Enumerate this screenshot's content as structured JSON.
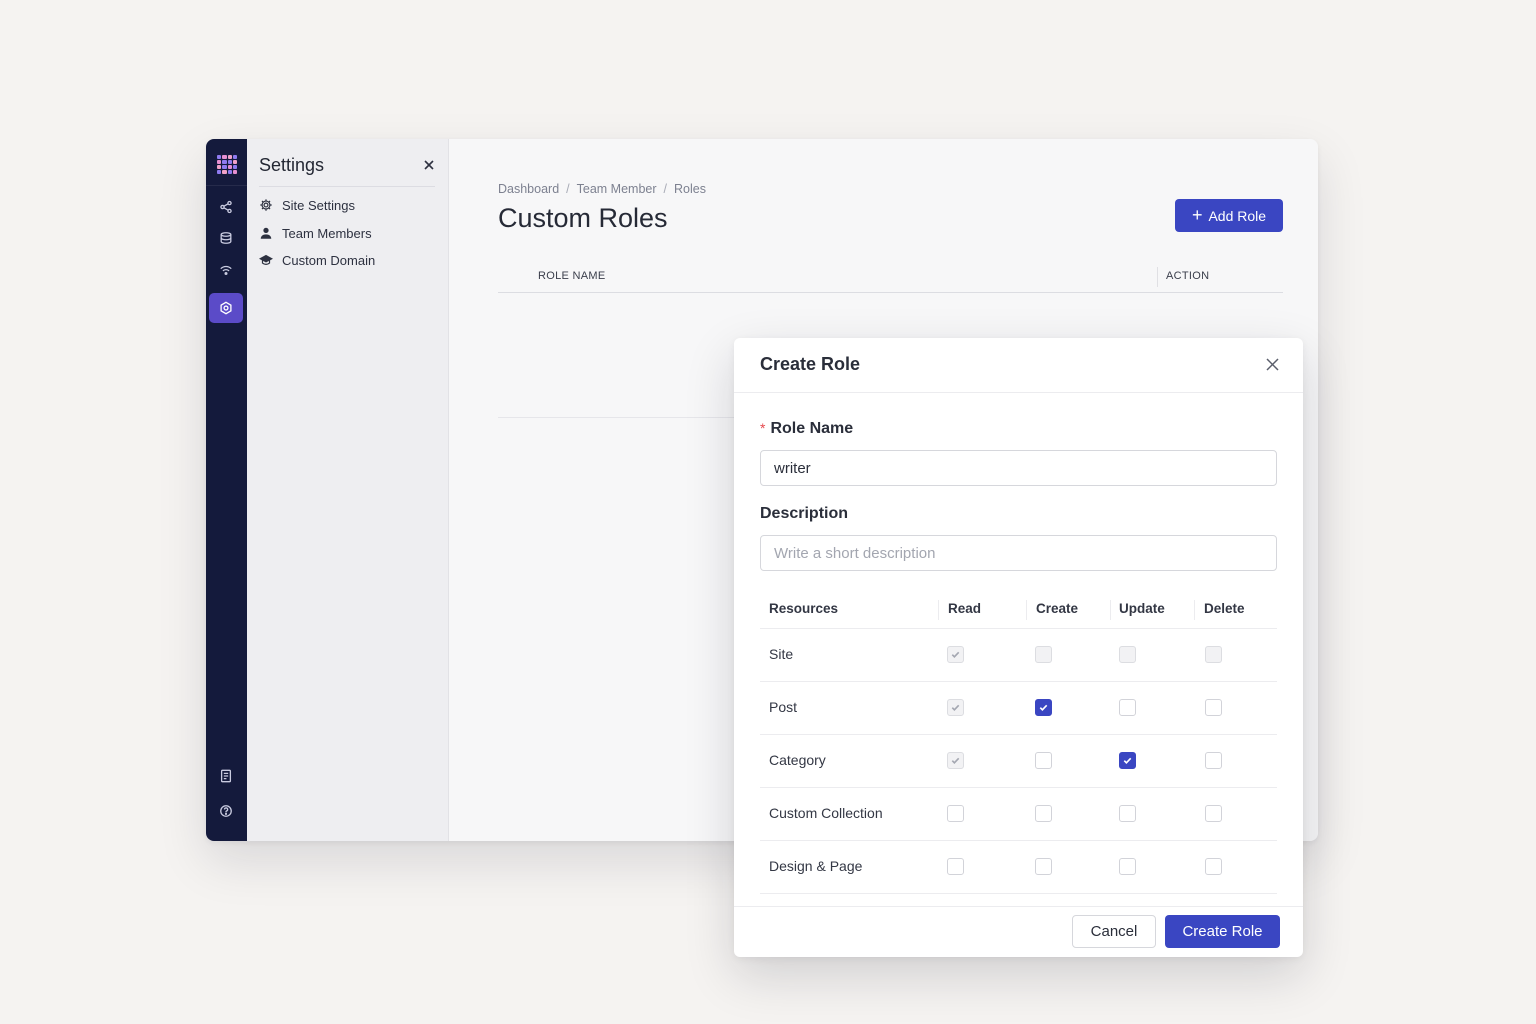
{
  "rail": {
    "logo": "app-logo-grid",
    "items": [
      {
        "name": "share-icon",
        "active": false
      },
      {
        "name": "database-icon",
        "active": false
      },
      {
        "name": "signal-icon",
        "active": false
      },
      {
        "name": "settings-icon",
        "active": true
      }
    ],
    "bottom_items": [
      {
        "name": "document-icon"
      },
      {
        "name": "help-icon"
      }
    ]
  },
  "settings": {
    "title": "Settings",
    "items": [
      {
        "label": "Site Settings",
        "icon": "gear-icon"
      },
      {
        "label": "Team Members",
        "icon": "user-icon"
      },
      {
        "label": "Custom Domain",
        "icon": "domain-icon"
      }
    ]
  },
  "main": {
    "breadcrumb": [
      "Dashboard",
      "Team Member",
      "Roles"
    ],
    "title": "Custom Roles",
    "add_button": "Add Role",
    "table": {
      "columns": [
        "ROLE NAME",
        "ACTION"
      ]
    }
  },
  "modal": {
    "title": "Create Role",
    "role_name_label": "Role Name",
    "role_name_value": "writer",
    "description_label": "Description",
    "description_placeholder": "Write a short description",
    "permissions": {
      "columns": [
        "Resources",
        "Read",
        "Create",
        "Update",
        "Delete"
      ],
      "rows": [
        {
          "resource": "Site",
          "read": "checked-disabled",
          "create": "disabled",
          "update": "disabled",
          "delete": "disabled"
        },
        {
          "resource": "Post",
          "read": "checked-disabled",
          "create": "checked",
          "update": "unchecked",
          "delete": "unchecked"
        },
        {
          "resource": "Category",
          "read": "checked-disabled",
          "create": "unchecked",
          "update": "checked",
          "delete": "unchecked"
        },
        {
          "resource": "Custom Collection",
          "read": "unchecked",
          "create": "unchecked",
          "update": "unchecked",
          "delete": "unchecked"
        },
        {
          "resource": "Design & Page",
          "read": "unchecked",
          "create": "unchecked",
          "update": "unchecked",
          "delete": "unchecked"
        }
      ]
    },
    "cancel_label": "Cancel",
    "submit_label": "Create Role"
  },
  "colors": {
    "accent": "#3a46c2",
    "rail_bg": "#141a3c",
    "rail_active": "#5b4bc8",
    "required": "#e5484d"
  }
}
